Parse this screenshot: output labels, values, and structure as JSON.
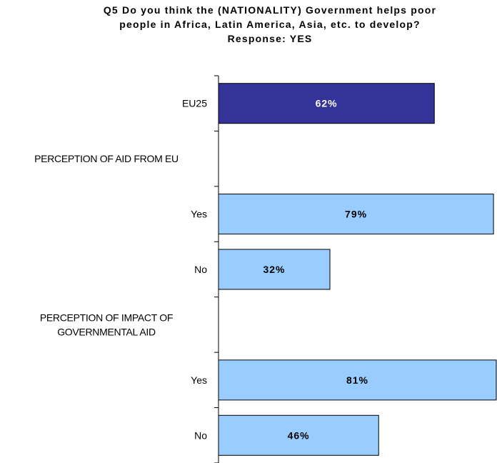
{
  "chart_data": {
    "type": "bar",
    "orientation": "horizontal",
    "title": [
      "Q5 Do you think the (NATIONALITY) Government helps poor",
      "people in Africa, Latin America, Asia, etc. to develop?",
      "Response: YES"
    ],
    "categories": [
      "EU25",
      "PERCEPTION OF AID FROM EU",
      "Yes",
      "No",
      "PERCEPTION OF IMPACT OF GOVERNMENTAL AID",
      "Yes",
      "No"
    ],
    "category_lines": [
      [
        "EU25"
      ],
      [
        "PERCEPTION OF AID FROM EU"
      ],
      [
        "Yes"
      ],
      [
        "No"
      ],
      [
        "PERCEPTION OF IMPACT OF",
        "GOVERNMENTAL AID"
      ],
      [
        "Yes"
      ],
      [
        "No"
      ]
    ],
    "values": [
      62,
      null,
      79,
      32,
      null,
      81,
      46
    ],
    "value_labels": [
      "62%",
      "",
      "79%",
      "32%",
      "",
      "81%",
      "46%"
    ],
    "bar_colors": [
      "#333399",
      null,
      "#99CCFF",
      "#99CCFF",
      null,
      "#99CCFF",
      "#99CCFF"
    ],
    "label_colors": [
      "#ffffff",
      null,
      "#000000",
      "#000000",
      null,
      "#000000",
      "#000000"
    ],
    "xlim": [
      0,
      80
    ],
    "grid": false,
    "legend": "none"
  }
}
